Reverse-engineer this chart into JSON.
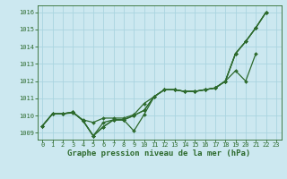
{
  "title": "Graphe pression niveau de la mer (hPa)",
  "bg_color": "#cce8f0",
  "grid_color": "#aad4e0",
  "line_color": "#2d6a2d",
  "xlim": [
    -0.5,
    23.5
  ],
  "ylim": [
    1008.6,
    1016.4
  ],
  "yticks": [
    1009,
    1010,
    1011,
    1012,
    1013,
    1014,
    1015,
    1016
  ],
  "xticks": [
    0,
    1,
    2,
    3,
    4,
    5,
    6,
    7,
    8,
    9,
    10,
    11,
    12,
    13,
    14,
    15,
    16,
    17,
    18,
    19,
    20,
    21,
    22,
    23
  ],
  "s1": [
    1009.4,
    1010.1,
    1010.1,
    1010.15,
    1009.75,
    1009.6,
    1009.85,
    1009.85,
    1009.85,
    1010.05,
    1010.7,
    1011.1,
    1011.5,
    1011.5,
    1011.4,
    1011.4,
    1011.5,
    1011.6,
    1012.0,
    1013.6,
    1014.3,
    1015.1,
    1016.0,
    null
  ],
  "s2": [
    1009.4,
    1010.1,
    1010.1,
    1010.2,
    1009.7,
    1008.82,
    1009.6,
    1009.75,
    1009.75,
    1010.0,
    1010.3,
    1011.1,
    1011.5,
    1011.5,
    1011.4,
    1011.4,
    1011.5,
    1011.6,
    1012.0,
    1013.6,
    1014.3,
    1015.1,
    1016.0,
    null
  ],
  "s3": [
    1009.4,
    1010.1,
    1010.1,
    1010.2,
    1009.7,
    1008.82,
    1009.35,
    1009.75,
    1009.75,
    1009.1,
    1010.05,
    1011.1,
    1011.5,
    1011.5,
    1011.4,
    1011.4,
    1011.5,
    1011.6,
    1012.0,
    1013.6,
    1014.3,
    1015.1,
    1016.0,
    null
  ],
  "s4": [
    1009.4,
    1010.1,
    1010.1,
    1010.2,
    1009.7,
    1008.82,
    1009.35,
    1009.75,
    1009.75,
    1010.0,
    1010.3,
    1011.1,
    1011.5,
    1011.5,
    1011.4,
    1011.4,
    1011.5,
    1011.6,
    1012.0,
    1012.6,
    1012.0,
    1013.6,
    null,
    null
  ],
  "ylabel_fontsize": 5.0,
  "xlabel_fontsize": 6.5,
  "tick_fontsize": 5.0,
  "linewidth": 0.9,
  "markersize": 2.0
}
